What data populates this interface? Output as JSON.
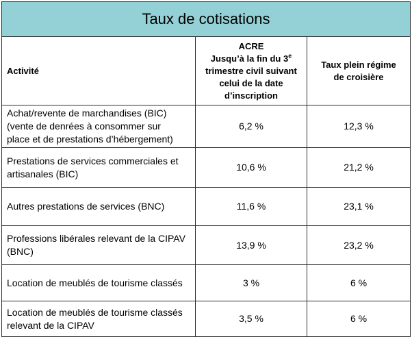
{
  "table": {
    "title": "Taux de cotisations",
    "headers": {
      "activity": "Activité",
      "acre_lines": [
        "ACRE",
        "Jusqu’à la fin du 3",
        "e",
        "trimestre civil suivant",
        "celui de la date",
        "d’inscription"
      ],
      "plein_lines": [
        "Taux plein régime",
        "de croisière"
      ]
    },
    "rows": [
      {
        "activity_lines": [
          "Achat/revente de marchandises (BIC)",
          "(vente de denrées à consommer sur",
          "place et de prestations d’hébergement)"
        ],
        "acre": "6,2 %",
        "plein": "12,3 %"
      },
      {
        "activity_lines": [
          "Prestations de services commerciales et",
          "artisanales (BIC)"
        ],
        "acre": "10,6 %",
        "plein": "21,2 %"
      },
      {
        "activity_lines": [
          "Autres prestations de services (BNC)"
        ],
        "acre": "11,6 %",
        "plein": "23,1 %"
      },
      {
        "activity_lines": [
          "Professions libérales relevant de la CIPAV",
          "(BNC)"
        ],
        "acre": "13,9 %",
        "plein": "23,2 %"
      },
      {
        "activity_lines": [
          "Location de meublés de tourisme classés"
        ],
        "acre": "3 %",
        "plein": "6 %"
      },
      {
        "activity_lines": [
          "Location de meublés de tourisme classés",
          "relevant de la CIPAV"
        ],
        "acre": "3,5 %",
        "plein": "6 %"
      }
    ]
  }
}
